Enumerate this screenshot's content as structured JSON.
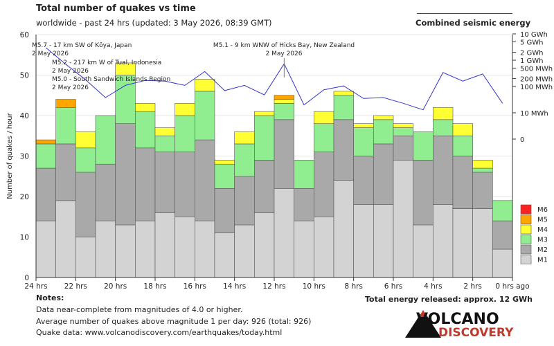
{
  "title": "Total number of quakes vs time",
  "subtitle": "worldwide - past 24 hrs (updated: 3 May 2026, 08:39 GMT)",
  "energy_legend": "Combined seismic energy",
  "notes": {
    "title": "Notes:",
    "lines": [
      "Data near-complete from magnitudes of 4.0 or higher.",
      "Average number of quakes above magnitude 1 per day: 926 (total: 926)",
      "Quake data: www.volcanodiscovery.com/earthquakes/today.html"
    ]
  },
  "energy_total": "Total energy released: approx. 12 GWh",
  "logo": {
    "line1": "VOLCANO",
    "line2": "DISCOVERY"
  },
  "colors": {
    "M1": "#d3d3d3",
    "M2": "#a9a9a9",
    "M3": "#90ee90",
    "M4": "#ffff33",
    "M5": "#ffa500",
    "M6": "#ff2020",
    "energy": "#3333cc"
  },
  "chart_data": {
    "type": "bar",
    "stacked": true,
    "ylabel": "Number of quakes / hour",
    "ylim": [
      0,
      60
    ],
    "y_ticks": [
      0,
      10,
      20,
      30,
      40,
      50,
      60
    ],
    "x_tick_labels": [
      "24 hrs",
      "22 hrs",
      "20 hrs",
      "18 hrs",
      "16 hrs",
      "14 hrs",
      "12 hrs",
      "10 hrs",
      "8 hrs",
      "6 hrs",
      "4 hrs",
      "2 hrs",
      "0 hrs ago"
    ],
    "hours_ago": [
      23.5,
      22.5,
      21.5,
      20.5,
      19.5,
      18.5,
      17.5,
      16.5,
      15.5,
      14.5,
      13.5,
      12.5,
      11.5,
      10.5,
      9.5,
      8.5,
      7.5,
      6.5,
      5.5,
      4.5,
      3.5,
      2.5,
      1.5,
      0.5
    ],
    "series": [
      {
        "name": "M1",
        "values": [
          14,
          19,
          10,
          14,
          13,
          14,
          16,
          15,
          14,
          11,
          13,
          16,
          22,
          14,
          15,
          24,
          18,
          18,
          29,
          13,
          18,
          17,
          17,
          7
        ]
      },
      {
        "name": "M2",
        "values": [
          13,
          14,
          16,
          14,
          25,
          18,
          15,
          16,
          20,
          11,
          12,
          13,
          17,
          8,
          16,
          15,
          12,
          15,
          6,
          16,
          17,
          13,
          9,
          7
        ]
      },
      {
        "name": "M3",
        "values": [
          6,
          9,
          6,
          12,
          12,
          9,
          4,
          9,
          12,
          6,
          8,
          11,
          4,
          7,
          7,
          6,
          7,
          6,
          2,
          7,
          4,
          5,
          1,
          5
        ]
      },
      {
        "name": "M4",
        "values": [
          0,
          0,
          4,
          0,
          3,
          2,
          2,
          3,
          3,
          1,
          3,
          1,
          1,
          0,
          3,
          1,
          1,
          1,
          1,
          0,
          3,
          3,
          2,
          0
        ]
      },
      {
        "name": "M5",
        "values": [
          1,
          2,
          0,
          0,
          0,
          0,
          0,
          0,
          0,
          0,
          0,
          0,
          1,
          0,
          0,
          0,
          0,
          0,
          0,
          0,
          0,
          0,
          0,
          0
        ]
      },
      {
        "name": "M6",
        "values": [
          0,
          0,
          0,
          0,
          0,
          0,
          0,
          0,
          0,
          0,
          0,
          0,
          0,
          0,
          0,
          0,
          0,
          0,
          0,
          0,
          0,
          0,
          0,
          0
        ]
      }
    ],
    "legend": [
      "M6",
      "M5",
      "M4",
      "M3",
      "M2",
      "M1"
    ],
    "energy_axis": {
      "tick_labels": [
        "10 GWh",
        "5 GWh",
        "2 GWh",
        "1 GWh",
        "500 MWh",
        "200 MWh",
        "100 MWh",
        "10 MWh",
        "0"
      ],
      "tick_values_mwh": [
        10000,
        5000,
        2000,
        1000,
        500,
        200,
        100,
        10,
        1
      ]
    },
    "energy_series": {
      "name": "Combined seismic energy",
      "values_mwh": [
        3000,
        700,
        180,
        38,
        110,
        170,
        160,
        110,
        370,
        70,
        110,
        48,
        730,
        20,
        75,
        105,
        35,
        38,
        23,
        13,
        340,
        160,
        300,
        23
      ]
    },
    "annotations": [
      {
        "hours_ago": 23.5,
        "text": "M5.7 - 17 km SW of Kōya, Japan",
        "date": "2 May 2026"
      },
      {
        "hours_ago": 22.5,
        "text": "M5.2 - 217 km W of Tual, Indonesia",
        "date": "2 May 2026"
      },
      {
        "hours_ago": 22.5,
        "text": "M5.0 - South Sandwich Islands Region",
        "date": "2 May 2026"
      },
      {
        "hours_ago": 11.5,
        "text": "M5.1 - 9 km WNW of Hicks Bay, New Zealand",
        "date": "2 May 2026"
      }
    ]
  }
}
